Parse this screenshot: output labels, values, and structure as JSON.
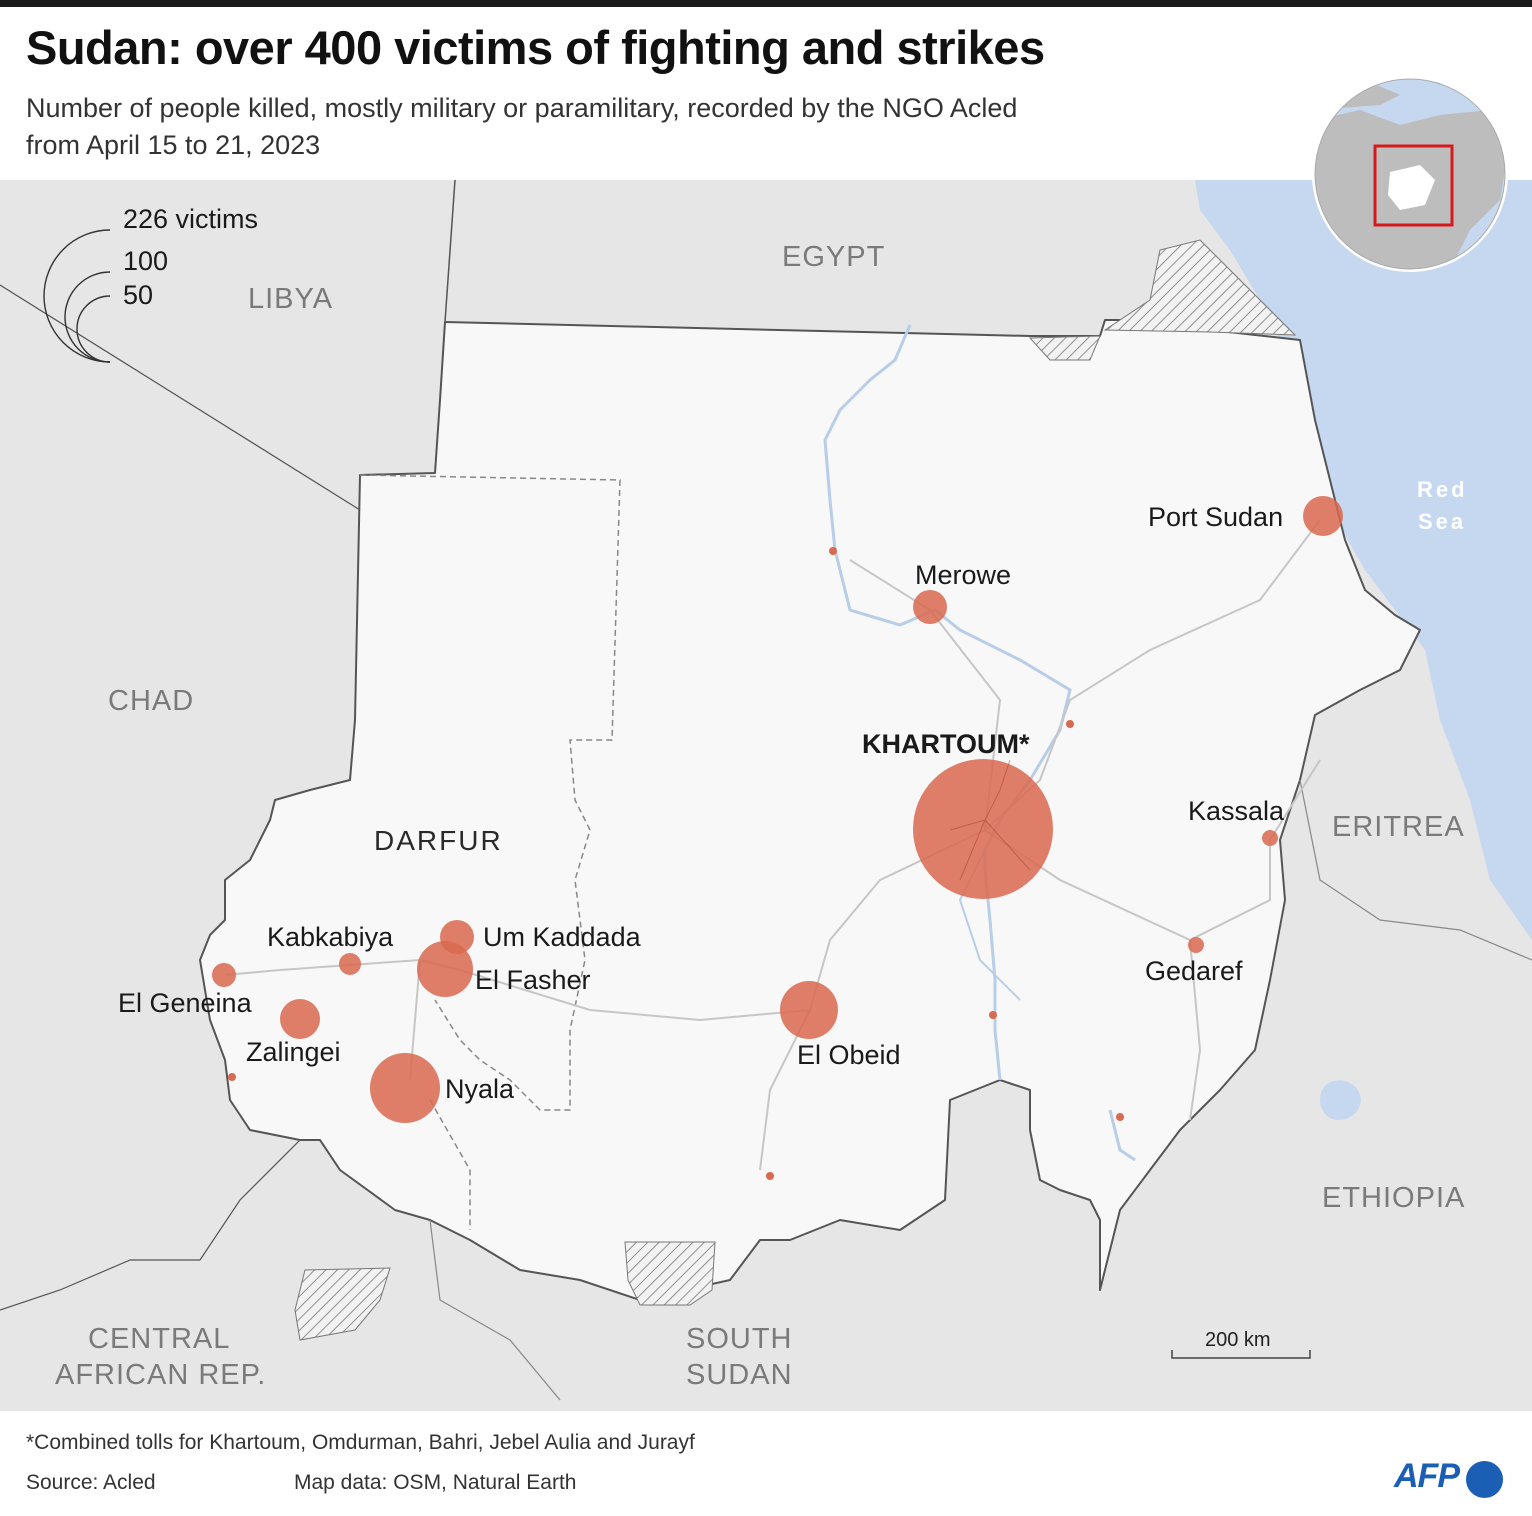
{
  "title": "Sudan: over 400 victims of fighting and strikes",
  "subtitle_line1": "Number of people killed, mostly military or paramilitary, recorded by the NGO Acled",
  "subtitle_line2": "from April 15 to 21, 2023",
  "legend": {
    "large": "226 victims",
    "medium": "100",
    "small": "50"
  },
  "countries": {
    "libya": "LIBYA",
    "egypt": "EGYPT",
    "chad": "CHAD",
    "eritrea": "ERITREA",
    "ethiopia": "ETHIOPIA",
    "car_line1": "CENTRAL",
    "car_line2": "AFRICAN REP.",
    "ssudan_line1": "SOUTH",
    "ssudan_line2": "SUDAN"
  },
  "region": "DARFUR",
  "sea_line1": "Red",
  "sea_line2": "Sea",
  "cities": {
    "port_sudan": "Port Sudan",
    "merowe": "Merowe",
    "khartoum": "KHARTOUM*",
    "kassala": "Kassala",
    "gedaref": "Gedaref",
    "kabkabiya": "Kabkabiya",
    "um_kaddada": "Um Kaddada",
    "el_fasher": "El Fasher",
    "el_geneina": "El Geneina",
    "zalingei": "Zalingei",
    "nyala": "Nyala",
    "el_obeid": "El Obeid"
  },
  "victims_symbols": [
    {
      "name": "KHARTOUM*",
      "size": "largest"
    },
    {
      "name": "Nyala",
      "size": "large"
    },
    {
      "name": "El Obeid",
      "size": "medium"
    },
    {
      "name": "El Fasher",
      "size": "medium"
    },
    {
      "name": "Port Sudan",
      "size": "small"
    },
    {
      "name": "Merowe",
      "size": "small"
    },
    {
      "name": "Zalingei",
      "size": "small"
    },
    {
      "name": "Um Kaddada",
      "size": "small"
    },
    {
      "name": "Kabkabiya",
      "size": "small"
    },
    {
      "name": "El Geneina",
      "size": "small"
    },
    {
      "name": "Kassala",
      "size": "minimal"
    },
    {
      "name": "Gedaref",
      "size": "minimal"
    }
  ],
  "scale_bar": "200 km",
  "footnote": "*Combined tolls for Khartoum, Omdurman, Bahri, Jebel Aulia and Jurayf",
  "source": "Source: Acled",
  "map_data": "Map data: OSM, Natural Earth",
  "logo": "AFP",
  "colors": {
    "symbol": "#d9694f",
    "water": "#c5d8ef",
    "sudan_fill": "#f7f7f7",
    "neighbor_fill": "#e4e4e4",
    "inset_box": "#d7191c"
  }
}
